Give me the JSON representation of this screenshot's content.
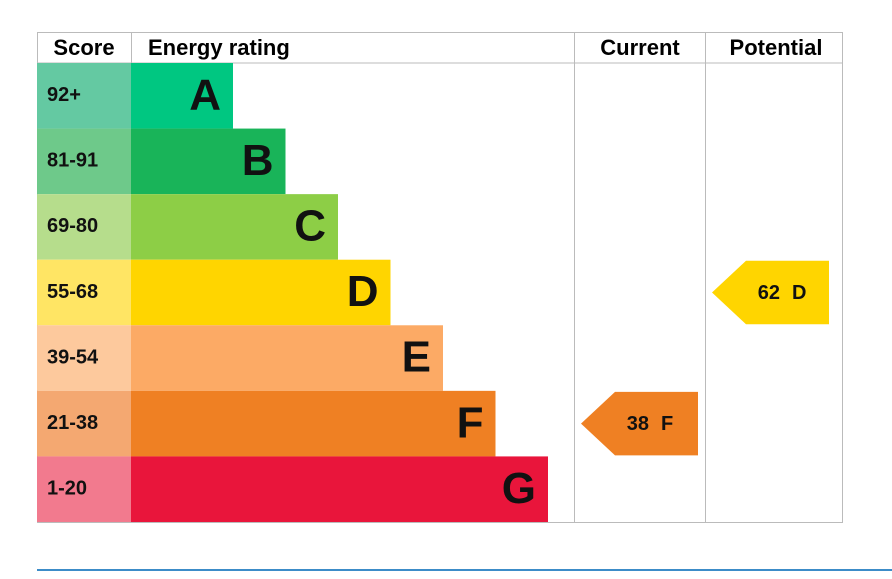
{
  "chart_data": {
    "type": "epc",
    "headers": {
      "score": "Score",
      "rating": "Energy rating",
      "current": "Current",
      "potential": "Potential"
    },
    "bands": [
      {
        "score": "92+",
        "letter": "A",
        "color": "#00c781",
        "light": "#64c9a2"
      },
      {
        "score": "81-91",
        "letter": "B",
        "color": "#19b459",
        "light": "#6ec98a"
      },
      {
        "score": "69-80",
        "letter": "C",
        "color": "#8dce46",
        "light": "#b6dd8c"
      },
      {
        "score": "55-68",
        "letter": "D",
        "color": "#ffd500",
        "light": "#ffe564"
      },
      {
        "score": "39-54",
        "letter": "E",
        "color": "#fcaa65",
        "light": "#fdc99d"
      },
      {
        "score": "21-38",
        "letter": "F",
        "color": "#ef8023",
        "light": "#f4a871"
      },
      {
        "score": "1-20",
        "letter": "G",
        "color": "#e9153b",
        "light": "#f27a8e"
      }
    ],
    "current": {
      "value": 38,
      "letter": "F"
    },
    "potential": {
      "value": 62,
      "letter": "D"
    }
  }
}
